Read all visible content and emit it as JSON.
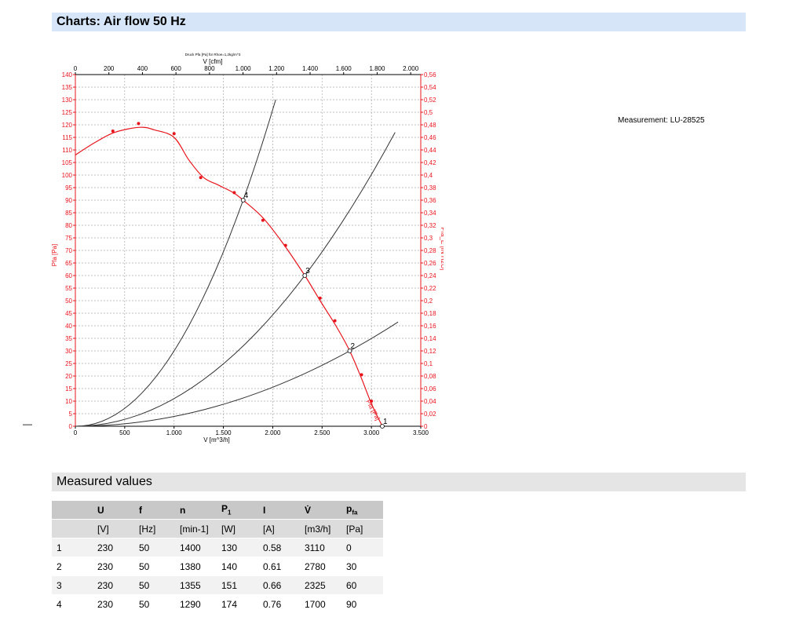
{
  "header": {
    "title": "Charts: Air flow 50 Hz"
  },
  "measurement": "Measurement: LU-28525",
  "dash": "—",
  "chart_data": {
    "type": "line",
    "title": "Druck Pfa [Pa] für Rhoe=1,2kg/m^3",
    "xlabel": "V [m^3/h]",
    "x2label": "V [cfm]",
    "ylabel": "Pfa [Pa]",
    "y2label": "Pfa_E [IN H2O]",
    "xlim": [
      0,
      3500
    ],
    "ylim": [
      0,
      140
    ],
    "x2lim": [
      0,
      2060
    ],
    "y2lim": [
      0,
      0.56
    ],
    "xticks": [
      0,
      500,
      1000,
      1500,
      2000,
      2500,
      3000,
      3500
    ],
    "xtick_labels": [
      "0",
      "500",
      "1.000",
      "1.500",
      "2.000",
      "2.500",
      "3.000",
      "3.500"
    ],
    "x2ticks": [
      0,
      200,
      400,
      600,
      800,
      1000,
      1200,
      1400,
      1600,
      1800,
      2000
    ],
    "x2tick_labels": [
      "0",
      "200",
      "400",
      "600",
      "800",
      "1.000",
      "1.200",
      "1.400",
      "1.600",
      "1.800",
      "2.000"
    ],
    "yticks": [
      0,
      5,
      10,
      15,
      20,
      25,
      30,
      35,
      40,
      45,
      50,
      55,
      60,
      65,
      70,
      75,
      80,
      85,
      90,
      95,
      100,
      105,
      110,
      115,
      120,
      125,
      130,
      135,
      140
    ],
    "y2ticks": [
      0,
      0.02,
      0.04,
      0.06,
      0.08,
      0.1,
      0.12,
      0.14,
      0.16,
      0.18,
      0.2,
      0.22,
      0.24,
      0.26,
      0.28,
      0.3,
      0.32,
      0.34,
      0.36,
      0.38,
      0.4,
      0.42,
      0.44,
      0.46,
      0.48,
      0.5,
      0.52,
      0.54,
      0.56
    ],
    "y2tick_labels": [
      "0",
      "0,02",
      "0,04",
      "0,06",
      "0,08",
      "0,1",
      "0,12",
      "0,14",
      "0,16",
      "0,18",
      "0,2",
      "0,22",
      "0,24",
      "0,26",
      "0,28",
      "0,3",
      "0,32",
      "0,34",
      "0,36",
      "0,38",
      "0,4",
      "0,42",
      "0,44",
      "0,46",
      "0,48",
      "0,5",
      "0,52",
      "0,54",
      "0,56"
    ],
    "grid": true,
    "fan_curve": {
      "name": "Pfa [Pa]",
      "color": "#e8141c",
      "x": [
        0,
        200,
        400,
        650,
        800,
        1000,
        1150,
        1300,
        1450,
        1600,
        1700,
        1900,
        2100,
        2325,
        2480,
        2640,
        2780,
        2900,
        3000,
        3110
      ],
      "y": [
        108,
        113,
        117,
        119,
        118,
        115,
        106,
        99,
        96,
        93,
        90,
        83,
        73,
        60,
        50,
        40,
        30,
        19,
        9,
        0
      ],
      "markers_x": [
        380,
        640,
        1000,
        1270,
        1610,
        1900,
        2130,
        2480,
        2630,
        2900,
        3000
      ],
      "markers_y": [
        117.5,
        120.5,
        116.5,
        99,
        93,
        82,
        72,
        51,
        42,
        20.5,
        10
      ]
    },
    "system_curves": [
      {
        "color": "#333333",
        "x": [
          0,
          1700,
          2030
        ],
        "y": [
          0,
          90,
          130
        ]
      },
      {
        "color": "#333333",
        "x": [
          0,
          2325,
          3240
        ],
        "y": [
          0,
          60,
          117
        ]
      },
      {
        "color": "#333333",
        "x": [
          0,
          2780,
          3270
        ],
        "y": [
          0,
          30,
          41.5
        ]
      }
    ],
    "operating_points": [
      {
        "label": "1",
        "x": 3110,
        "y": 0
      },
      {
        "label": "2",
        "x": 2780,
        "y": 30
      },
      {
        "label": "3",
        "x": 2325,
        "y": 60
      },
      {
        "label": "4",
        "x": 1700,
        "y": 90
      }
    ]
  },
  "measured": {
    "title": "Measured values",
    "headers": [
      "",
      "U",
      "f",
      "n",
      "P",
      "I",
      "V̇",
      "p"
    ],
    "header_subs": [
      "",
      "",
      "",
      "",
      "1",
      "",
      "",
      "fa"
    ],
    "units": [
      "",
      "[V]",
      "[Hz]",
      "[min-1]",
      "[W]",
      "[A]",
      "[m3/h]",
      "[Pa]"
    ],
    "rows": [
      [
        "1",
        "230",
        "50",
        "1400",
        "130",
        "0.58",
        "3110",
        "0"
      ],
      [
        "2",
        "230",
        "50",
        "1380",
        "140",
        "0.61",
        "2780",
        "30"
      ],
      [
        "3",
        "230",
        "50",
        "1355",
        "151",
        "0.66",
        "2325",
        "60"
      ],
      [
        "4",
        "230",
        "50",
        "1290",
        "174",
        "0.76",
        "1700",
        "90"
      ]
    ]
  }
}
